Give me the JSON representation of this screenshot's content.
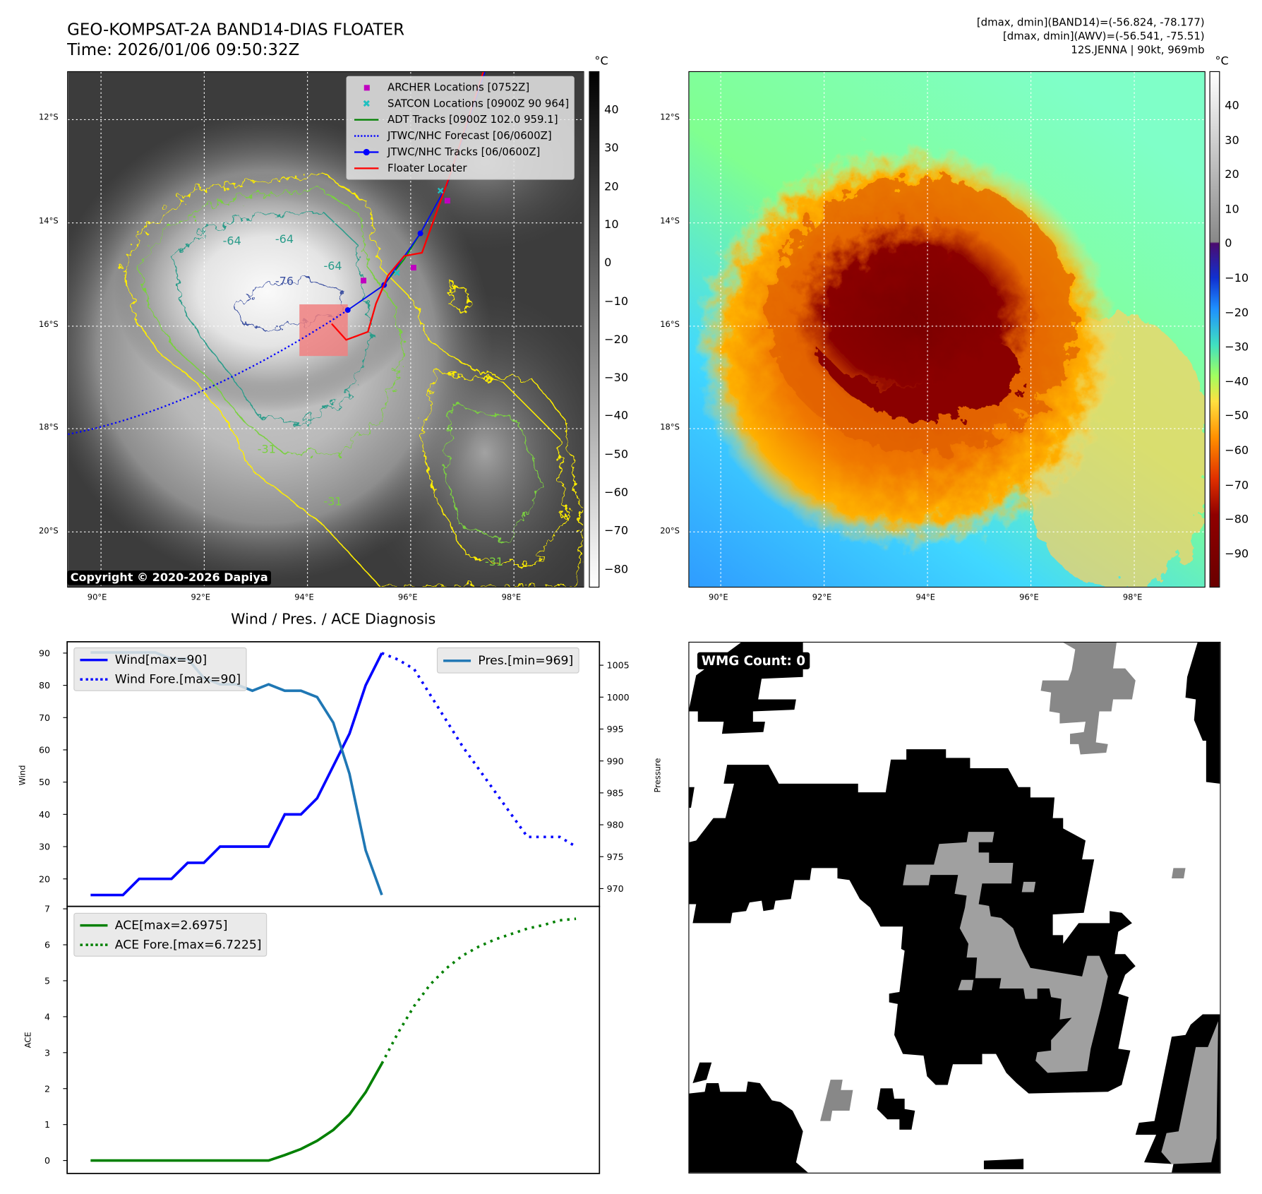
{
  "header": {
    "title": "GEO-KOMPSAT-2A BAND14-DIAS FLOATER",
    "time": "Time: 2026/01/06 09:50:32Z",
    "stats": [
      "[dmax, dmin](BAND14)=(-56.824, -78.177)",
      "[dmax, dmin](AWV)=(-56.541, -75.51)",
      "12S.JENNA | 90kt, 969mb"
    ]
  },
  "maps": {
    "lat_labels": [
      "12°S",
      "14°S",
      "16°S",
      "18°S",
      "20°S"
    ],
    "lon_labels": [
      "90°E",
      "92°E",
      "94°E",
      "96°E",
      "98°E"
    ]
  },
  "map_ir": {
    "legend": [
      {
        "label": "ARCHER Locations [0752Z]",
        "icon": "square-marker",
        "color": "#c000c0"
      },
      {
        "label": "SATCON Locations [0900Z 90 964]",
        "icon": "x-marker",
        "color": "#20c0c0"
      },
      {
        "label": "ADT Tracks [0900Z 102.0 959.1]",
        "icon": "solid-line",
        "color": "#008000"
      },
      {
        "label": "JTWC/NHC Forecast [06/0600Z]",
        "icon": "dotted-line",
        "color": "#0000ff"
      },
      {
        "label": "JTWC/NHC Tracks [06/0600Z]",
        "icon": "line-dot",
        "color": "#0000ff"
      },
      {
        "label": "Floater Locater",
        "icon": "solid-line",
        "color": "#ff0000"
      }
    ],
    "contour_labels": [
      "-76",
      "-64",
      "-64",
      "-64",
      "-31",
      "-31",
      "-31"
    ],
    "copyright": "Copyright © 2020-2026 Dapiya",
    "colorbar": {
      "unit": "°C",
      "ticks": [
        "40",
        "30",
        "20",
        "10",
        "0",
        "−10",
        "−20",
        "−30",
        "−40",
        "−50",
        "−60",
        "−70",
        "−80"
      ]
    }
  },
  "map_color": {
    "colorbar": {
      "unit": "°C",
      "ticks": [
        "40",
        "30",
        "20",
        "10",
        "0",
        "−10",
        "−20",
        "−30",
        "−40",
        "−50",
        "−60",
        "−70",
        "−80",
        "−90"
      ]
    }
  },
  "diagnosis": {
    "title": "Wind / Pres. / ACE Diagnosis"
  },
  "chart_data": [
    {
      "type": "line",
      "ylabel": "Wind",
      "y2label": "Pressure",
      "ylim": [
        13,
        92
      ],
      "y2lim": [
        967,
        1008
      ],
      "yticks": [
        20,
        30,
        40,
        50,
        60,
        70,
        80,
        90
      ],
      "y2ticks": [
        970,
        975,
        980,
        985,
        990,
        995,
        1000,
        1005
      ],
      "legend_left": [
        "Wind[max=90]",
        "Wind Fore.[max=90]"
      ],
      "legend_right": [
        "Pres.[min=969]"
      ],
      "series": [
        {
          "name": "Wind[max=90]",
          "axis": "left",
          "style": "solid",
          "color": "#0000ff",
          "x": [
            0,
            1,
            2,
            3,
            4,
            5,
            6,
            7,
            8,
            9,
            10,
            11,
            12,
            13,
            14,
            15,
            16,
            17,
            18
          ],
          "values": [
            15,
            15,
            15,
            20,
            20,
            20,
            25,
            25,
            30,
            30,
            30,
            30,
            40,
            40,
            45,
            55,
            65,
            80,
            90
          ]
        },
        {
          "name": "Wind Fore.[max=90]",
          "axis": "left",
          "style": "dotted",
          "color": "#0000ff",
          "x": [
            18,
            19,
            20,
            21,
            22,
            23,
            24,
            25,
            26,
            27,
            28,
            29,
            30
          ],
          "values": [
            90,
            88,
            85,
            77,
            69,
            61,
            54,
            47,
            40,
            33,
            33,
            33,
            30
          ]
        },
        {
          "name": "Pres.[min=969]",
          "axis": "right",
          "style": "solid",
          "color": "#1f77b4",
          "x": [
            0,
            1,
            2,
            3,
            4,
            5,
            6,
            7,
            8,
            9,
            10,
            11,
            12,
            13,
            14,
            15,
            16,
            17,
            18
          ],
          "values": [
            1007,
            1007,
            1007,
            1007,
            1007,
            1006,
            1006,
            1003,
            1002,
            1002,
            1001,
            1002,
            1001,
            1001,
            1000,
            996,
            988,
            976,
            969
          ]
        }
      ]
    },
    {
      "type": "line",
      "ylabel": "ACE",
      "ylim": [
        -0.1,
        7
      ],
      "yticks": [
        0,
        1,
        2,
        3,
        4,
        5,
        6,
        7
      ],
      "legend": [
        "ACE[max=2.6975]",
        "ACE Fore.[max=6.7225]"
      ],
      "series": [
        {
          "name": "ACE[max=2.6975]",
          "style": "solid",
          "color": "#008000",
          "x": [
            0,
            1,
            2,
            3,
            4,
            5,
            6,
            7,
            8,
            9,
            10,
            11,
            12,
            13,
            14,
            15,
            16,
            17,
            18
          ],
          "values": [
            0,
            0,
            0,
            0,
            0,
            0,
            0,
            0,
            0,
            0,
            0,
            0,
            0.15,
            0.32,
            0.55,
            0.85,
            1.28,
            1.9,
            2.6975
          ]
        },
        {
          "name": "ACE Fore.[max=6.7225]",
          "style": "dotted",
          "color": "#008000",
          "x": [
            18,
            19,
            20,
            21,
            22,
            23,
            24,
            25,
            26,
            27,
            28,
            29,
            30
          ],
          "values": [
            2.6975,
            3.55,
            4.3,
            4.9,
            5.35,
            5.7,
            5.95,
            6.15,
            6.3,
            6.45,
            6.55,
            6.68,
            6.7225
          ]
        }
      ]
    }
  ],
  "wmg": {
    "label": "WMG Count: 0"
  }
}
